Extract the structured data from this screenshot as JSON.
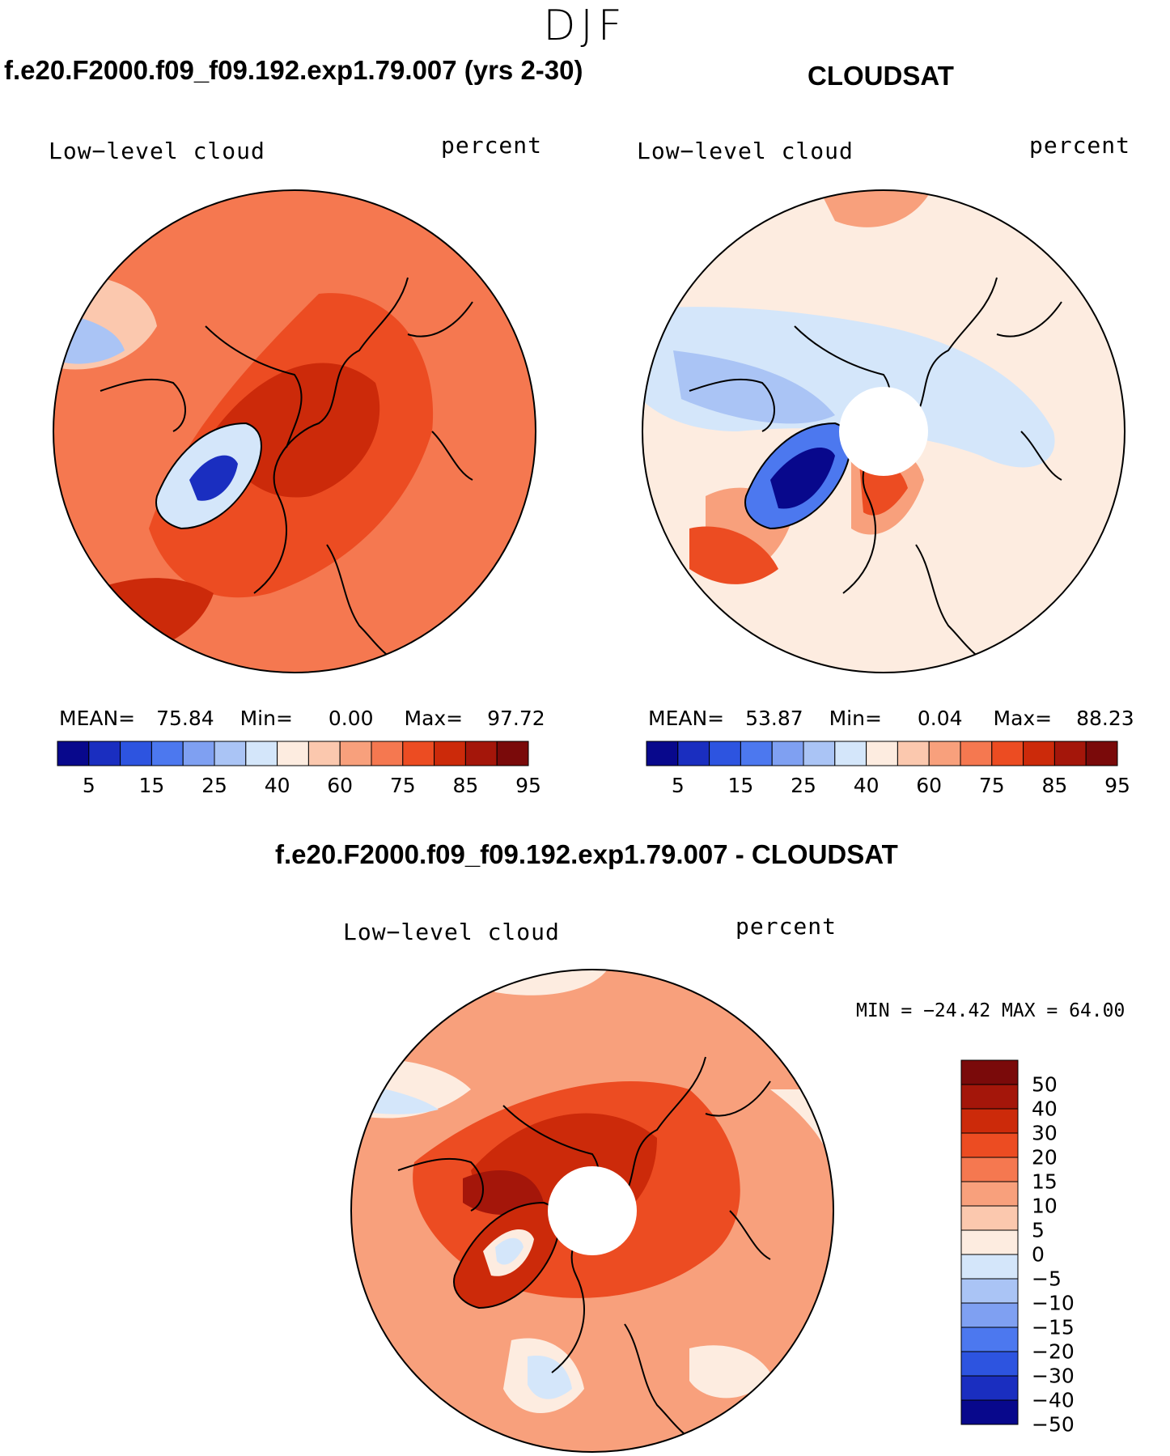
{
  "season": "DJF",
  "panels": [
    {
      "title": "f.e20.F2000.f09_f09.192.exp1.79.007 (yrs 2-30)",
      "variable": "Low−level cloud",
      "units": "percent",
      "stats": {
        "mean_label": "MEAN=",
        "mean": "75.84",
        "min_label": "Min=",
        "min": "0.00",
        "max_label": "Max=",
        "max": "97.72"
      },
      "polar_hole": false
    },
    {
      "title": "CLOUDSAT",
      "variable": "Low−level cloud",
      "units": "percent",
      "stats": {
        "mean_label": "MEAN=",
        "mean": "53.87",
        "min_label": "Min=",
        "min": "0.04",
        "max_label": "Max=",
        "max": "88.23"
      },
      "polar_hole": true
    },
    {
      "title": "f.e20.F2000.f09_f09.192.exp1.79.007 - CLOUDSAT",
      "variable": "Low−level cloud",
      "units": "percent",
      "minmax_text": "MIN = −24.42 MAX =   64.00",
      "polar_hole": true
    }
  ],
  "abs_colorbar": {
    "colors": [
      "#08088c",
      "#1a2ec0",
      "#2d54e0",
      "#4c78ef",
      "#7fa0f2",
      "#aac4f5",
      "#d4e6fa",
      "#fdece0",
      "#fbc8ae",
      "#f8a07c",
      "#f57850",
      "#ec4c22",
      "#cc2a0a",
      "#a4160a",
      "#7a0a0a"
    ],
    "ticks": [
      "5",
      "15",
      "25",
      "40",
      "60",
      "75",
      "85",
      "95"
    ]
  },
  "diff_colorbar": {
    "colors": [
      "#7a0a0a",
      "#a4160a",
      "#cc2a0a",
      "#ec4c22",
      "#f57850",
      "#f8a07c",
      "#fbc8ae",
      "#fdece0",
      "#d4e6fa",
      "#aac4f5",
      "#7fa0f2",
      "#4c78ef",
      "#2d54e0",
      "#1a2ec0",
      "#08088c"
    ],
    "ticks": [
      "50",
      "40",
      "30",
      "20",
      "15",
      "10",
      "5",
      "0",
      "−5",
      "−10",
      "−15",
      "−20",
      "−30",
      "−40",
      "−50"
    ]
  }
}
